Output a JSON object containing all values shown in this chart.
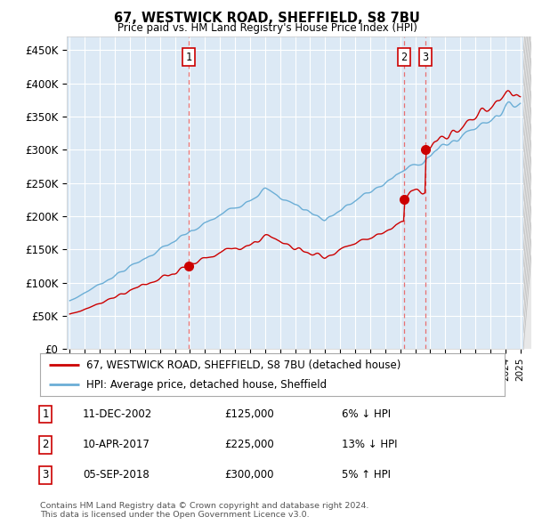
{
  "title": "67, WESTWICK ROAD, SHEFFIELD, S8 7BU",
  "subtitle": "Price paid vs. HM Land Registry's House Price Index (HPI)",
  "background_color": "#dce9f5",
  "plot_bg_color": "#dce9f5",
  "fig_bg_color": "#ffffff",
  "ylim": [
    0,
    470000
  ],
  "yticks": [
    0,
    50000,
    100000,
    150000,
    200000,
    250000,
    300000,
    350000,
    400000,
    450000
  ],
  "ytick_labels": [
    "£0",
    "£50K",
    "£100K",
    "£150K",
    "£200K",
    "£250K",
    "£300K",
    "£350K",
    "£400K",
    "£450K"
  ],
  "x_start_year": 1995,
  "x_end_year": 2025,
  "sale_dates_decimal": [
    2002.94,
    2017.27,
    2018.68
  ],
  "sale_prices": [
    125000,
    225000,
    300000
  ],
  "hpi_line_color": "#6baed6",
  "price_line_color": "#cc0000",
  "dashed_line_color": "#e8a0a0",
  "legend_entries": [
    "67, WESTWICK ROAD, SHEFFIELD, S8 7BU (detached house)",
    "HPI: Average price, detached house, Sheffield"
  ],
  "table_rows": [
    {
      "num": "1",
      "date": "11-DEC-2002",
      "price": "£125,000",
      "change": "6% ↓ HPI"
    },
    {
      "num": "2",
      "date": "10-APR-2017",
      "price": "£225,000",
      "change": "13% ↓ HPI"
    },
    {
      "num": "3",
      "date": "05-SEP-2018",
      "price": "£300,000",
      "change": "5% ↑ HPI"
    }
  ],
  "footer": "Contains HM Land Registry data © Crown copyright and database right 2024.\nThis data is licensed under the Open Government Licence v3.0."
}
